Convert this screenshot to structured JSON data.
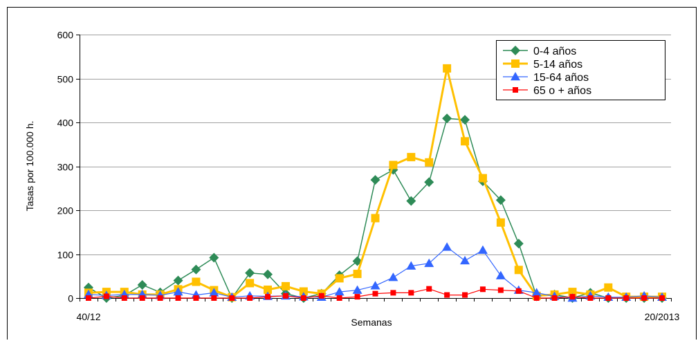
{
  "chart_data": {
    "type": "line",
    "title": "",
    "xlabel": "Semanas",
    "ylabel": "Tasas por 100.000 h.",
    "x_tick_labels": [
      "40/12",
      "20/2013"
    ],
    "ylim": [
      0,
      600
    ],
    "y_ticks": [
      0,
      100,
      200,
      300,
      400,
      500,
      600
    ],
    "grid": "horizontal",
    "legend_position": "top-right",
    "series": [
      {
        "name": "0-4 años",
        "color": "#2e8b57",
        "marker": "diamond",
        "values": [
          24,
          0,
          6,
          30,
          13,
          40,
          65,
          92,
          0,
          57,
          54,
          10,
          0,
          10,
          52,
          84,
          269,
          292,
          221,
          264,
          409,
          406,
          266,
          223,
          124,
          4,
          8,
          0,
          12,
          0,
          0,
          0,
          0
        ]
      },
      {
        "name": "5-14 años",
        "color": "#ffc000",
        "marker": "square",
        "values": [
          12,
          14,
          14,
          8,
          8,
          20,
          37,
          18,
          2,
          34,
          19,
          27,
          15,
          10,
          45,
          55,
          182,
          303,
          321,
          309,
          523,
          357,
          273,
          172,
          64,
          5,
          8,
          14,
          8,
          24,
          3,
          3,
          3
        ]
      },
      {
        "name": "15-64 años",
        "color": "#3366ff",
        "marker": "triangle",
        "values": [
          8,
          6,
          8,
          8,
          6,
          14,
          7,
          12,
          2,
          5,
          4,
          5,
          3,
          2,
          14,
          18,
          28,
          47,
          73,
          79,
          116,
          85,
          109,
          51,
          18,
          12,
          4,
          0,
          5,
          2,
          2,
          5,
          2
        ]
      },
      {
        "name": "65 o + años",
        "color": "#ff0000",
        "marker": "small-square",
        "values": [
          0,
          4,
          0,
          0,
          0,
          0,
          0,
          0,
          0,
          0,
          3,
          5,
          0,
          5,
          0,
          3,
          10,
          12,
          12,
          21,
          7,
          7,
          20,
          18,
          16,
          0,
          0,
          3,
          0,
          0,
          0,
          0,
          0
        ]
      }
    ]
  }
}
